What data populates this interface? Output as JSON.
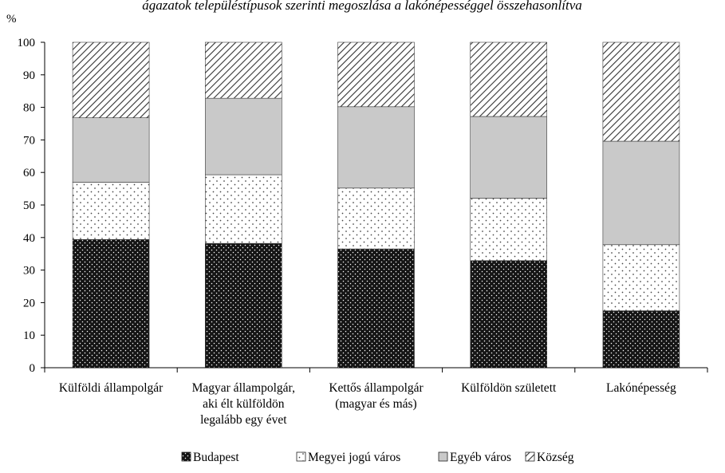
{
  "chart_data": {
    "type": "bar",
    "stacked": true,
    "title": "ágazatok településtípusok szerinti megoszlása a lakónépességgel összehasonlítva",
    "ylabel": "%",
    "ylim": [
      0,
      100
    ],
    "yticks": [
      0,
      10,
      20,
      30,
      40,
      50,
      60,
      70,
      80,
      90,
      100
    ],
    "grid": false,
    "legend_position": "bottom",
    "categories": [
      [
        "Külföldi állampolgár"
      ],
      [
        "Magyar állampolgár,",
        "aki élt külföldön",
        "legalább egy évet"
      ],
      [
        "Kettős állampolgár",
        "(magyar és más)"
      ],
      [
        "Külföldön született"
      ],
      [
        "Lakónépesség"
      ]
    ],
    "series": [
      {
        "name": "Budapest",
        "pattern": "dark-dots",
        "values": [
          39.4,
          38.2,
          36.5,
          32.9,
          17.5
        ]
      },
      {
        "name": "Megyei jogú város",
        "pattern": "sparse-dots",
        "values": [
          17.6,
          21.1,
          18.7,
          19.2,
          20.3
        ]
      },
      {
        "name": "Egyéb város",
        "pattern": "solid-gray",
        "values": [
          19.8,
          23.5,
          25.0,
          25.1,
          31.8
        ]
      },
      {
        "name": "Község",
        "pattern": "diagonal-hatch",
        "values": [
          23.2,
          17.2,
          19.8,
          22.8,
          30.4
        ]
      }
    ],
    "colors": {
      "axis": "#000000",
      "gray_fill": "#c9c9c9",
      "bar_outline": "#3a3a3a"
    }
  }
}
